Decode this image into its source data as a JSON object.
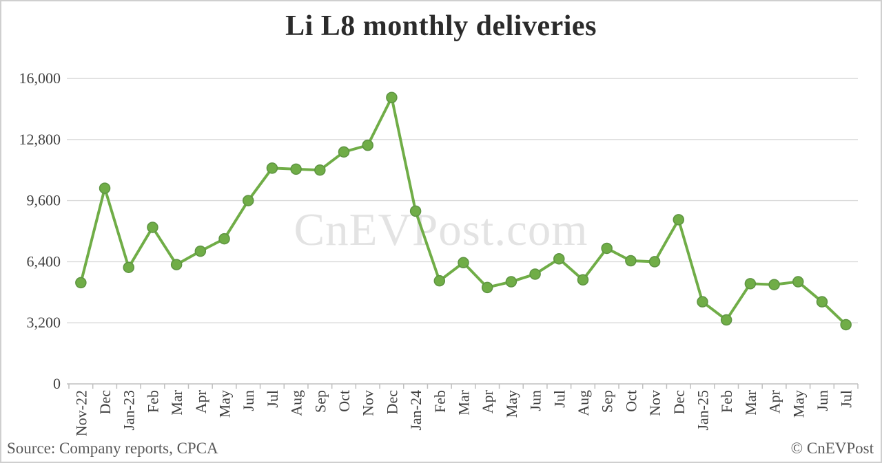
{
  "page": {
    "title": "Li L8 monthly deliveries",
    "watermark": "CnEVPost.com",
    "source": "Source: Company reports, CPCA",
    "copyright": "© CnEVPost"
  },
  "colors": {
    "line": "#70ad47",
    "marker_fill": "#70ad47",
    "marker_stroke": "#5d9441",
    "grid": "#d9d9d9",
    "axis": "#bfbfbf",
    "tick_label": "#404040",
    "title_text": "#2b2b2b",
    "footer_text": "#595959",
    "watermark_text": "#e3e3e3"
  },
  "chart_data": {
    "type": "line",
    "title": "Li L8 monthly deliveries",
    "xlabel": "",
    "ylabel": "",
    "legend": "none",
    "grid": "horizontal",
    "marker": "circle",
    "ylim": [
      0,
      16000
    ],
    "yticks": [
      0,
      3200,
      6400,
      9600,
      12800,
      16000
    ],
    "ytick_labels": [
      "0",
      "3,200",
      "6,400",
      "9,600",
      "12,800",
      "16,000"
    ],
    "categories": [
      "Nov-22",
      "Dec",
      "Jan-23",
      "Feb",
      "Mar",
      "Apr",
      "May",
      "Jun",
      "Jul",
      "Aug",
      "Sep",
      "Oct",
      "Nov",
      "Dec",
      "Jan-24",
      "Feb",
      "Mar",
      "Apr",
      "May",
      "Jun",
      "Jul",
      "Aug",
      "Sep",
      "Oct",
      "Nov",
      "Dec",
      "Jan-25",
      "Feb",
      "Mar",
      "Apr",
      "May",
      "Jun",
      "Jul"
    ],
    "series": [
      {
        "name": "Li L8 monthly deliveries",
        "values": [
          5300,
          10250,
          6100,
          8200,
          6250,
          6950,
          7600,
          9600,
          11300,
          11250,
          11200,
          12150,
          12500,
          15000,
          9050,
          5400,
          6350,
          5050,
          5350,
          5750,
          6550,
          5450,
          7100,
          6450,
          6400,
          8600,
          4300,
          3350,
          5250,
          5200,
          5350,
          4300,
          3100
        ]
      }
    ]
  }
}
